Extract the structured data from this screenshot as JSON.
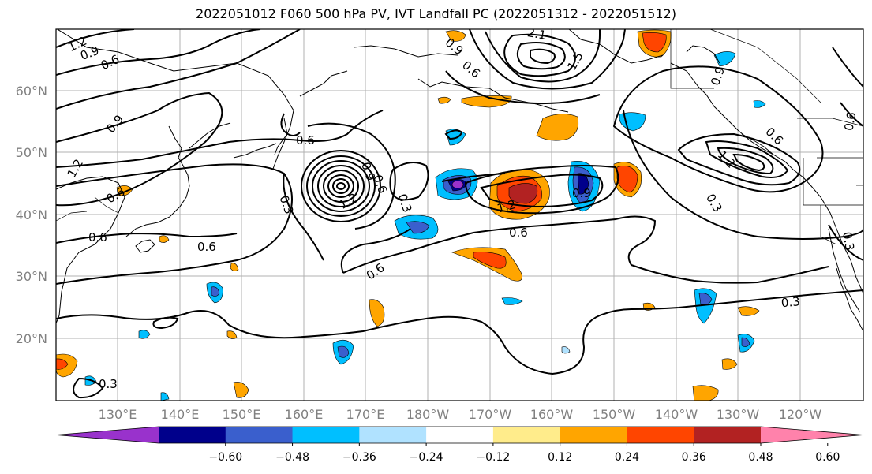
{
  "title": "2022051012 F060 500 hPa PV, IVT Landfall PC (2022051312 - 2022051512)",
  "lat_labels": [
    "60°N",
    "50°N",
    "40°N",
    "30°N",
    "20°N"
  ],
  "lon_labels": [
    "130°E",
    "140°E",
    "150°E",
    "160°E",
    "170°E",
    "180°W",
    "170°W",
    "160°W",
    "150°W",
    "140°W",
    "130°W",
    "120°W"
  ],
  "contour_labels": [
    "1.2",
    "0.9",
    "0.6",
    "1.2",
    "0.9",
    "0.6",
    "0.6",
    "0.3",
    "0.6",
    "0.6",
    "0.6",
    "0.6",
    "0.3",
    "0.9",
    "1.2",
    "0.6",
    "0.9",
    "0.9",
    "0.6",
    "1.2",
    "0.3",
    "0.6",
    "0.3",
    "0.3",
    "0.3",
    "0.9",
    "0.6",
    "1.2",
    "1.5",
    "2.1"
  ],
  "colorbar": {
    "tick_labels": [
      "−0.60",
      "−0.48",
      "−0.36",
      "−0.24",
      "−0.12",
      "0.12",
      "0.24",
      "0.36",
      "0.48",
      "0.60"
    ],
    "colors": [
      "#9932cc",
      "#00008b",
      "#3a5fcd",
      "#00bfff",
      "#b0e2ff",
      "#ffffff",
      "#ffec8b",
      "#ffa500",
      "#ff4500",
      "#b22222",
      "#ff82ab"
    ]
  }
}
